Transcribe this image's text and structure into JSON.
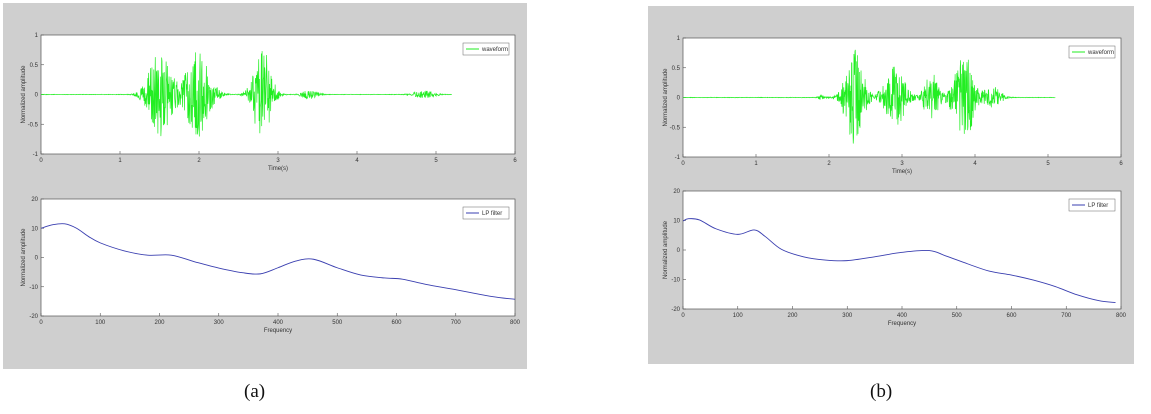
{
  "captions": {
    "a": "(a)",
    "b": "(b)"
  },
  "colors": {
    "waveform": "#22ee22",
    "lp": "#3a3fb0",
    "figure_bg": "#cfcfcf",
    "axes_bg": "#ffffff"
  },
  "chart_data": [
    {
      "panel": "a",
      "type": "line",
      "xlabel": "Time(s)",
      "ylabel": "Normalized amplitude",
      "xlim": [
        0,
        6
      ],
      "ylim": [
        -1,
        1
      ],
      "xticks": [
        "0",
        "1",
        "2",
        "3",
        "4",
        "5",
        "6"
      ],
      "yticks": [
        "1",
        "0.5",
        "0",
        "-0.5",
        "-1"
      ],
      "legend": "waveform",
      "legend_position": "top-right",
      "color": "#22ee22",
      "x_end": 5.2,
      "bursts": [
        {
          "center": 1.5,
          "width": 0.2,
          "amp": 0.72
        },
        {
          "center": 1.98,
          "width": 0.22,
          "amp": 0.72
        },
        {
          "center": 2.8,
          "width": 0.16,
          "amp": 0.78
        },
        {
          "center": 3.4,
          "width": 0.14,
          "amp": 0.08
        },
        {
          "center": 4.85,
          "width": 0.18,
          "amp": 0.06
        }
      ]
    },
    {
      "panel": "a",
      "type": "line",
      "xlabel": "Frequency",
      "ylabel": "Normalized amplitude",
      "xlim": [
        0,
        800
      ],
      "ylim": [
        -20,
        20
      ],
      "xticks": [
        "0",
        "100",
        "200",
        "300",
        "400",
        "500",
        "600",
        "700",
        "800"
      ],
      "yticks": [
        "20",
        "10",
        "0",
        "-10",
        "-20"
      ],
      "legend": "LP filter",
      "legend_position": "top-right",
      "color": "#3a3fb0",
      "x": [
        0,
        20,
        40,
        60,
        80,
        100,
        140,
        180,
        220,
        260,
        300,
        340,
        370,
        400,
        430,
        460,
        500,
        540,
        580,
        610,
        650,
        700,
        760,
        800
      ],
      "y": [
        10,
        11.2,
        11.5,
        10,
        7.2,
        5,
        2.3,
        0.8,
        0.8,
        -1.5,
        -3.6,
        -5.2,
        -5.6,
        -3.5,
        -1.2,
        -0.6,
        -3.5,
        -6,
        -7,
        -7.4,
        -9.2,
        -11,
        -13.3,
        -14.3
      ]
    },
    {
      "panel": "b",
      "type": "line",
      "xlabel": "Time(s)",
      "ylabel": "Normalized amplitude",
      "xlim": [
        0,
        6
      ],
      "ylim": [
        -1,
        1
      ],
      "xticks": [
        "0",
        "1",
        "2",
        "3",
        "4",
        "5",
        "6"
      ],
      "yticks": [
        "1",
        "0.5",
        "0",
        "-0.5",
        "-1"
      ],
      "legend": "waveform",
      "legend_position": "top-right",
      "color": "#22ee22",
      "x_end": 5.1,
      "bursts": [
        {
          "center": 1.9,
          "width": 0.06,
          "amp": 0.04
        },
        {
          "center": 2.35,
          "width": 0.18,
          "amp": 0.8
        },
        {
          "center": 2.9,
          "width": 0.2,
          "amp": 0.52
        },
        {
          "center": 3.4,
          "width": 0.14,
          "amp": 0.42
        },
        {
          "center": 3.85,
          "width": 0.2,
          "amp": 0.72
        },
        {
          "center": 4.25,
          "width": 0.16,
          "amp": 0.18
        }
      ]
    },
    {
      "panel": "b",
      "type": "line",
      "xlabel": "Frequency",
      "ylabel": "Normalized amplitude",
      "xlim": [
        0,
        800
      ],
      "ylim": [
        -20,
        20
      ],
      "xticks": [
        "0",
        "100",
        "200",
        "300",
        "400",
        "500",
        "600",
        "700",
        "800"
      ],
      "yticks": [
        "20",
        "10",
        "0",
        "-10",
        "-20"
      ],
      "legend": "LP filter",
      "legend_position": "top-right",
      "color": "#3a3fb0",
      "x": [
        0,
        10,
        30,
        60,
        100,
        130,
        150,
        180,
        220,
        260,
        300,
        350,
        400,
        450,
        480,
        520,
        560,
        600,
        640,
        680,
        720,
        760,
        790
      ],
      "y": [
        9.8,
        10.6,
        10.2,
        7.2,
        5.3,
        6.8,
        4.6,
        0.2,
        -2.3,
        -3.4,
        -3.6,
        -2.3,
        -0.8,
        -0.2,
        -2,
        -4.7,
        -7.2,
        -8.5,
        -10.2,
        -12.4,
        -15.2,
        -17.2,
        -17.8
      ]
    }
  ]
}
